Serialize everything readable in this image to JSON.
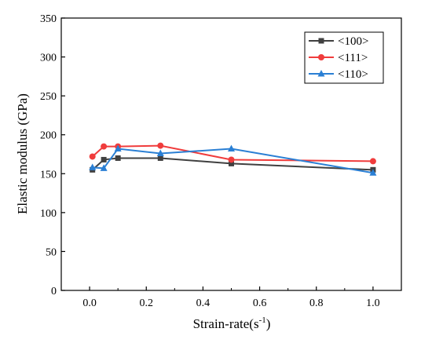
{
  "chart_data": {
    "type": "line",
    "xlabel_main": "Strain-rate(s",
    "xlabel_sup": "-1",
    "xlabel_close": ")",
    "ylabel": "Elastic modulus (GPa)",
    "xlim": [
      -0.1,
      1.1
    ],
    "ylim": [
      0,
      350
    ],
    "xticks": [
      0.0,
      0.2,
      0.4,
      0.6,
      0.8,
      1.0
    ],
    "xtick_labels": [
      "0.0",
      "0.2",
      "0.4",
      "0.6",
      "0.8",
      "1.0"
    ],
    "yticks": [
      0,
      50,
      100,
      150,
      200,
      250,
      300,
      350
    ],
    "ytick_labels": [
      "0",
      "50",
      "100",
      "150",
      "200",
      "250",
      "300",
      "350"
    ],
    "grid": false,
    "legend_position": "top-right",
    "series": [
      {
        "name": "<100>",
        "color": "#404040",
        "marker": "square",
        "points": [
          [
            0.01,
            155
          ],
          [
            0.05,
            168
          ],
          [
            0.1,
            170
          ],
          [
            0.25,
            170
          ],
          [
            0.5,
            163
          ],
          [
            1.0,
            155
          ]
        ]
      },
      {
        "name": "<111>",
        "color": "#f03c3c",
        "marker": "circle",
        "points": [
          [
            0.01,
            172
          ],
          [
            0.05,
            185
          ],
          [
            0.1,
            185
          ],
          [
            0.25,
            186
          ],
          [
            0.5,
            168
          ],
          [
            1.0,
            166
          ]
        ]
      },
      {
        "name": "<110>",
        "color": "#2a7fd4",
        "marker": "triangle",
        "points": [
          [
            0.01,
            158
          ],
          [
            0.05,
            157
          ],
          [
            0.1,
            182
          ],
          [
            0.25,
            176
          ],
          [
            0.5,
            182
          ],
          [
            1.0,
            151
          ]
        ]
      }
    ]
  }
}
